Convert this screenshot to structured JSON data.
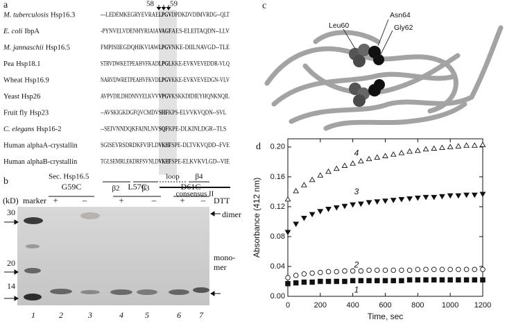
{
  "panel_a": {
    "label": "a",
    "pos_left": "58",
    "pos_right": "59",
    "rows": [
      {
        "species": "M. tuberculosis",
        "protein": "Hsp16.3",
        "italic": true,
        "pre": "---LEDEMKEGRYEVRAE",
        "motif": "LPGV",
        "post": "DPDKDVDIMVRDG--QLT"
      },
      {
        "species": "E. coli",
        "protein": "IbpA",
        "italic": true,
        "pre": "-PYNVELVDENHYRIAIA",
        "motif": "VAGF",
        "post": "AES-ELEITAQDN--LLV"
      },
      {
        "species": "M. jannaschii",
        "protein": "Hsp16.5",
        "italic": true,
        "pre": "FMPISIIEGDQHIKVIAW",
        "motif": "LPGV",
        "post": "NKE-DIILNAVGD--TLE"
      },
      {
        "species": "Pea",
        "protein": "Hsp18.1",
        "italic": false,
        "pre": "STRVDWKETPEAHVFKAD",
        "motif": "LPGL",
        "post": "KKE-EVKVEVEDDR-VLQ"
      },
      {
        "species": "Wheat",
        "protein": "Hsp16.9",
        "italic": false,
        "pre": "NARVDWRETPEAHVFKVD",
        "motif": "LPGV",
        "post": "KKE-EVKVEVEDGN-VLV"
      },
      {
        "species": "Yeast",
        "protein": "Hsp26",
        "italic": false,
        "pre": "AVPVDILDHDNNYELKVV",
        "motif": "VPGV",
        "post": "KSKKDIDIEYHQNKNQIL"
      },
      {
        "species": "Fruit fly",
        "protein": "Hsp23",
        "italic": false,
        "pre": "--AVSKIGKDGFQVCMDV",
        "motif": "SHF",
        "post": "KPS-ELVVKVQDN--SVL"
      },
      {
        "species": "C. elegans",
        "protein": "Hsp16-2",
        "italic": true,
        "pre": "--SEIVNNDQKFAINLNV",
        "motif": "SQF",
        "post": "KPE-DLKINLDGR--TLS"
      },
      {
        "species": "Human",
        "protein": "alphaA-crystallin",
        "italic": false,
        "pre": "SGISEVRSDRDKFVIFLD",
        "motif": "VKHF",
        "post": "SPE-DLTVKVQDD--FVE"
      },
      {
        "species": "Human",
        "protein": "alphaB-crystallin",
        "italic": false,
        "pre": "TGLSEMRLEKDRFSVNLD",
        "motif": "VKHF",
        "post": "SPE-ELKVKVLGD--VIE"
      }
    ],
    "sec": {
      "label": "Sec. Hsp16.5",
      "b2": "β2",
      "b3": "β3",
      "loop": "loop",
      "b4": "β4",
      "consensus": "consensus II"
    }
  },
  "panel_b": {
    "label": "b",
    "kd": "(kD)",
    "marker": "marker",
    "dtt": "DTT",
    "groups": [
      {
        "name": "G59C",
        "plus": "+",
        "minus": "–"
      },
      {
        "name": "L57C",
        "plus": "+",
        "minus": "–"
      },
      {
        "name": "D61C",
        "plus": "+",
        "minus": "–"
      }
    ],
    "sizes": [
      30,
      20,
      14
    ],
    "dimer": "dimer",
    "monomer": [
      "mono-",
      "mer"
    ],
    "lanes": [
      "1",
      "2",
      "3",
      "4",
      "5",
      "6",
      "7"
    ]
  },
  "panel_c": {
    "label": "c",
    "residues": [
      "Leu60",
      "Asn64",
      "Gly62"
    ]
  },
  "chart_data": {
    "type": "scatter",
    "label": "d",
    "x_label": "Time, sec",
    "y_label": "Absorbance (412 nm)",
    "x": [
      0,
      50,
      100,
      150,
      200,
      250,
      300,
      350,
      400,
      450,
      500,
      550,
      600,
      650,
      700,
      750,
      800,
      850,
      900,
      950,
      1000,
      1050,
      1100,
      1150,
      1200
    ],
    "series": [
      {
        "name": "1",
        "color": "#111111",
        "marker": "square",
        "filled": true,
        "values": [
          0.017,
          0.018,
          0.019,
          0.019,
          0.02,
          0.02,
          0.02,
          0.02,
          0.021,
          0.021,
          0.021,
          0.021,
          0.021,
          0.021,
          0.021,
          0.022,
          0.022,
          0.022,
          0.022,
          0.022,
          0.022,
          0.022,
          0.022,
          0.022,
          0.022
        ]
      },
      {
        "name": "2",
        "color": "#111111",
        "marker": "circle",
        "filled": false,
        "values": [
          0.025,
          0.028,
          0.03,
          0.031,
          0.032,
          0.033,
          0.033,
          0.034,
          0.034,
          0.034,
          0.035,
          0.035,
          0.035,
          0.035,
          0.035,
          0.035,
          0.036,
          0.036,
          0.036,
          0.036,
          0.036,
          0.036,
          0.036,
          0.036,
          0.036
        ]
      },
      {
        "name": "3",
        "color": "#111111",
        "marker": "triangle-down",
        "filled": true,
        "values": [
          0.086,
          0.097,
          0.105,
          0.11,
          0.114,
          0.117,
          0.119,
          0.121,
          0.123,
          0.124,
          0.126,
          0.127,
          0.128,
          0.129,
          0.13,
          0.131,
          0.132,
          0.133,
          0.133,
          0.134,
          0.135,
          0.135,
          0.136,
          0.136,
          0.137
        ]
      },
      {
        "name": "4",
        "color": "#111111",
        "marker": "triangle-up",
        "filled": false,
        "values": [
          0.13,
          0.141,
          0.149,
          0.156,
          0.162,
          0.167,
          0.171,
          0.175,
          0.178,
          0.181,
          0.184,
          0.186,
          0.188,
          0.19,
          0.192,
          0.194,
          0.195,
          0.197,
          0.198,
          0.199,
          0.2,
          0.201,
          0.202,
          0.202,
          0.203
        ]
      }
    ],
    "xlim": [
      0,
      1200
    ],
    "xticks": [
      0,
      200,
      400,
      600,
      800,
      1000,
      1200
    ],
    "ylim": [
      0,
      0.211
    ],
    "yticks": [
      {
        "value": 0,
        "label": "0.00"
      },
      0.04,
      0.08,
      0.12,
      0.16,
      {
        "value": 0.2,
        "label": "0.20"
      }
    ]
  }
}
